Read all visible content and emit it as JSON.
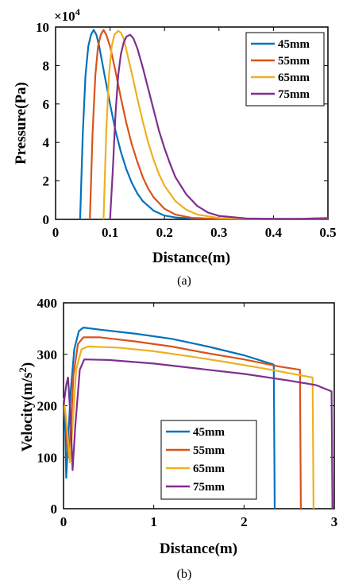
{
  "chart_data": [
    {
      "type": "line",
      "panel_label": "(a)",
      "xlabel": "Distance(m)",
      "ylabel": "Pressure(Pa)",
      "y_exponent_label": "×10",
      "y_exponent_power": "4",
      "xlim": [
        0,
        0.5
      ],
      "ylim": [
        0,
        10
      ],
      "xticks": [
        0,
        0.1,
        0.2,
        0.3,
        0.4,
        0.5
      ],
      "xtick_labels": [
        "0",
        "0.1",
        "0.2",
        "0.3",
        "0.4",
        "0.5"
      ],
      "yticks": [
        0,
        2,
        4,
        6,
        8,
        10
      ],
      "ytick_labels": [
        "0",
        "2",
        "4",
        "6",
        "8",
        "10"
      ],
      "legend_position": "top-right",
      "series": [
        {
          "name": "45mm",
          "color": "#0072BD",
          "points": [
            [
              0.045,
              0
            ],
            [
              0.05,
              4.5
            ],
            [
              0.055,
              7.5
            ],
            [
              0.06,
              9.0
            ],
            [
              0.065,
              9.6
            ],
            [
              0.07,
              9.85
            ],
            [
              0.075,
              9.6
            ],
            [
              0.08,
              9.0
            ],
            [
              0.09,
              7.5
            ],
            [
              0.1,
              6.0
            ],
            [
              0.11,
              4.6
            ],
            [
              0.12,
              3.5
            ],
            [
              0.13,
              2.6
            ],
            [
              0.14,
              1.9
            ],
            [
              0.15,
              1.35
            ],
            [
              0.16,
              0.95
            ],
            [
              0.18,
              0.45
            ],
            [
              0.2,
              0.2
            ],
            [
              0.22,
              0.1
            ],
            [
              0.25,
              0.04
            ],
            [
              0.3,
              0.02
            ],
            [
              0.35,
              0.02
            ],
            [
              0.4,
              0.02
            ],
            [
              0.45,
              0.02
            ],
            [
              0.5,
              0.03
            ]
          ]
        },
        {
          "name": "55mm",
          "color": "#D95319",
          "points": [
            [
              0.063,
              0
            ],
            [
              0.068,
              4.5
            ],
            [
              0.073,
              7.5
            ],
            [
              0.078,
              9.0
            ],
            [
              0.083,
              9.6
            ],
            [
              0.088,
              9.85
            ],
            [
              0.093,
              9.6
            ],
            [
              0.1,
              9.0
            ],
            [
              0.11,
              7.7
            ],
            [
              0.12,
              6.3
            ],
            [
              0.13,
              5.0
            ],
            [
              0.14,
              3.9
            ],
            [
              0.15,
              3.0
            ],
            [
              0.16,
              2.2
            ],
            [
              0.17,
              1.6
            ],
            [
              0.18,
              1.15
            ],
            [
              0.2,
              0.55
            ],
            [
              0.22,
              0.25
            ],
            [
              0.25,
              0.08
            ],
            [
              0.3,
              0.02
            ],
            [
              0.35,
              0.02
            ],
            [
              0.4,
              0.02
            ],
            [
              0.45,
              0.02
            ],
            [
              0.5,
              0.05
            ]
          ]
        },
        {
          "name": "65mm",
          "color": "#EDB120",
          "points": [
            [
              0.088,
              0
            ],
            [
              0.093,
              4.5
            ],
            [
              0.098,
              7.5
            ],
            [
              0.103,
              9.0
            ],
            [
              0.108,
              9.6
            ],
            [
              0.115,
              9.8
            ],
            [
              0.12,
              9.7
            ],
            [
              0.125,
              9.4
            ],
            [
              0.13,
              8.8
            ],
            [
              0.14,
              7.6
            ],
            [
              0.15,
              6.3
            ],
            [
              0.16,
              5.1
            ],
            [
              0.17,
              4.0
            ],
            [
              0.18,
              3.1
            ],
            [
              0.19,
              2.35
            ],
            [
              0.2,
              1.75
            ],
            [
              0.22,
              0.95
            ],
            [
              0.24,
              0.5
            ],
            [
              0.26,
              0.25
            ],
            [
              0.3,
              0.07
            ],
            [
              0.35,
              0.03
            ],
            [
              0.4,
              0.02
            ],
            [
              0.45,
              0.03
            ],
            [
              0.5,
              0.06
            ]
          ]
        },
        {
          "name": "75mm",
          "color": "#7E2F8E",
          "points": [
            [
              0.1,
              0
            ],
            [
              0.105,
              2.5
            ],
            [
              0.11,
              5.5
            ],
            [
              0.115,
              7.5
            ],
            [
              0.12,
              8.6
            ],
            [
              0.125,
              9.2
            ],
            [
              0.13,
              9.5
            ],
            [
              0.137,
              9.6
            ],
            [
              0.143,
              9.4
            ],
            [
              0.15,
              8.9
            ],
            [
              0.16,
              7.9
            ],
            [
              0.17,
              6.8
            ],
            [
              0.18,
              5.7
            ],
            [
              0.19,
              4.6
            ],
            [
              0.2,
              3.7
            ],
            [
              0.21,
              2.9
            ],
            [
              0.22,
              2.2
            ],
            [
              0.24,
              1.3
            ],
            [
              0.26,
              0.7
            ],
            [
              0.28,
              0.35
            ],
            [
              0.3,
              0.18
            ],
            [
              0.35,
              0.05
            ],
            [
              0.4,
              0.03
            ],
            [
              0.45,
              0.03
            ],
            [
              0.5,
              0.07
            ]
          ]
        }
      ]
    },
    {
      "type": "line",
      "panel_label": "(b)",
      "xlabel": "Distance(m)",
      "ylabel": "Velocity(m/s",
      "ylabel_superscript": "2",
      "ylabel_suffix": ")",
      "xlim": [
        0,
        3
      ],
      "ylim": [
        0,
        400
      ],
      "xticks": [
        0,
        1,
        2,
        3
      ],
      "xtick_labels": [
        "0",
        "1",
        "2",
        "3"
      ],
      "yticks": [
        0,
        100,
        200,
        300,
        400
      ],
      "ytick_labels": [
        "0",
        "100",
        "200",
        "300",
        "400"
      ],
      "legend_position": "bottom-center",
      "series": [
        {
          "name": "45mm",
          "color": "#0072BD",
          "points": [
            [
              0,
              200
            ],
            [
              0.02,
              150
            ],
            [
              0.03,
              60
            ],
            [
              0.05,
              130
            ],
            [
              0.08,
              230
            ],
            [
              0.12,
              310
            ],
            [
              0.17,
              345
            ],
            [
              0.22,
              352
            ],
            [
              0.4,
              348
            ],
            [
              0.8,
              340
            ],
            [
              1.2,
              330
            ],
            [
              1.6,
              315
            ],
            [
              2.0,
              298
            ],
            [
              2.33,
              280
            ],
            [
              2.34,
              0
            ]
          ]
        },
        {
          "name": "55mm",
          "color": "#D95319",
          "points": [
            [
              0,
              215
            ],
            [
              0.02,
              180
            ],
            [
              0.05,
              100
            ],
            [
              0.08,
              150
            ],
            [
              0.11,
              260
            ],
            [
              0.16,
              320
            ],
            [
              0.22,
              333
            ],
            [
              0.4,
              333
            ],
            [
              0.8,
              325
            ],
            [
              1.2,
              315
            ],
            [
              1.6,
              302
            ],
            [
              2.0,
              290
            ],
            [
              2.4,
              276
            ],
            [
              2.62,
              270
            ],
            [
              2.63,
              0
            ]
          ]
        },
        {
          "name": "65mm",
          "color": "#EDB120",
          "points": [
            [
              0,
              215
            ],
            [
              0.03,
              175
            ],
            [
              0.07,
              90
            ],
            [
              0.1,
              160
            ],
            [
              0.14,
              270
            ],
            [
              0.2,
              310
            ],
            [
              0.27,
              315
            ],
            [
              0.6,
              313
            ],
            [
              1.0,
              306
            ],
            [
              1.4,
              296
            ],
            [
              1.8,
              285
            ],
            [
              2.2,
              273
            ],
            [
              2.6,
              260
            ],
            [
              2.76,
              255
            ],
            [
              2.77,
              0
            ]
          ]
        },
        {
          "name": "75mm",
          "color": "#7E2F8E",
          "points": [
            [
              0,
              200
            ],
            [
              0.03,
              240
            ],
            [
              0.05,
              255
            ],
            [
              0.08,
              170
            ],
            [
              0.1,
              75
            ],
            [
              0.13,
              160
            ],
            [
              0.18,
              270
            ],
            [
              0.23,
              290
            ],
            [
              0.5,
              289
            ],
            [
              1.0,
              282
            ],
            [
              1.5,
              272
            ],
            [
              2.0,
              262
            ],
            [
              2.5,
              249
            ],
            [
              2.8,
              240
            ],
            [
              2.97,
              228
            ],
            [
              2.98,
              0
            ]
          ]
        }
      ]
    }
  ]
}
